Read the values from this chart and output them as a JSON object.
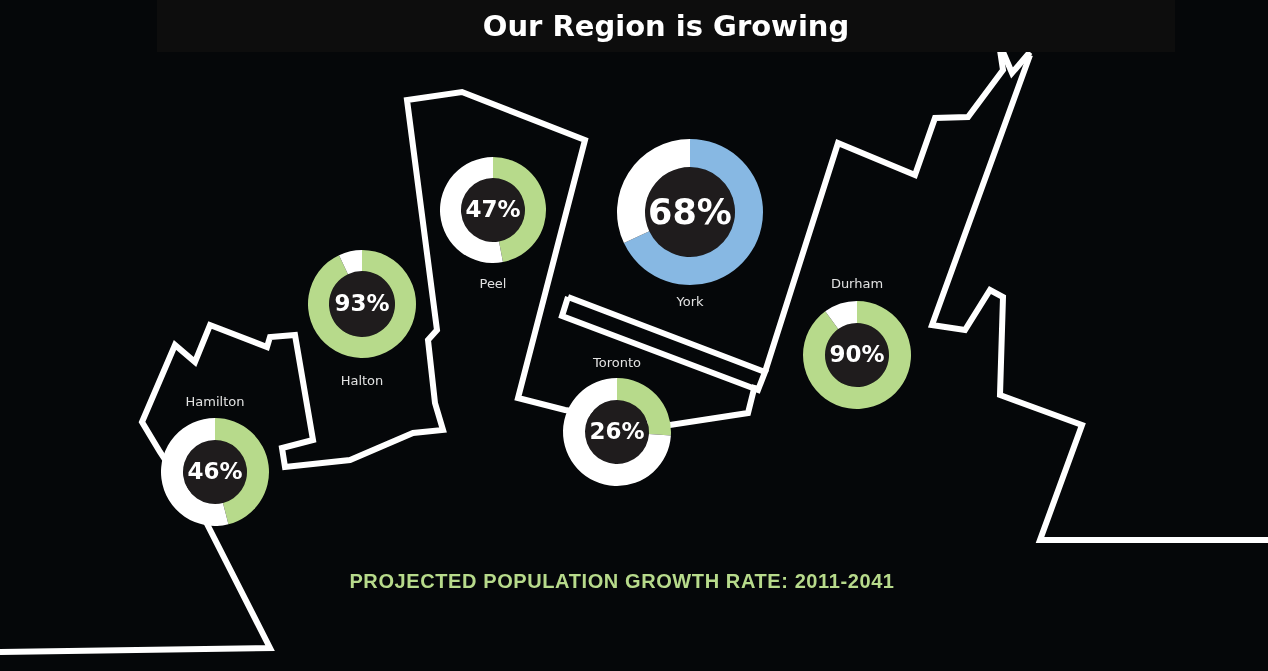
{
  "chart_data": [
    {
      "type": "other",
      "title": "Our Region is Growing",
      "annotations": [
        "PROJECTED POPULATION GROWTH RATE: 2011-2041"
      ]
    },
    {
      "type": "donut",
      "title": "Hamilton",
      "categories": [
        null,
        null
      ],
      "values": [
        46,
        54
      ],
      "colors": [
        "#b7da8b",
        "#ffffff"
      ],
      "value_labels": [
        "46%",
        null
      ]
    },
    {
      "type": "donut",
      "title": "Halton",
      "categories": [
        null,
        null
      ],
      "values": [
        93,
        7
      ],
      "colors": [
        "#b7da8b",
        "#ffffff"
      ],
      "value_labels": [
        "93%",
        null
      ]
    },
    {
      "type": "donut",
      "title": "Peel",
      "categories": [
        null,
        null
      ],
      "values": [
        47,
        53
      ],
      "colors": [
        "#b7da8b",
        "#ffffff"
      ],
      "value_labels": [
        "47%",
        null
      ]
    },
    {
      "type": "donut",
      "title": "Toronto",
      "categories": [
        null,
        null
      ],
      "values": [
        26,
        74
      ],
      "colors": [
        "#b7da8b",
        "#ffffff"
      ],
      "value_labels": [
        "26%",
        null
      ]
    },
    {
      "type": "donut",
      "title": "York",
      "categories": [
        null,
        null
      ],
      "values": [
        68,
        32
      ],
      "colors": [
        "#87b8e3",
        "#ffffff"
      ],
      "value_labels": [
        "68%",
        null
      ]
    },
    {
      "type": "donut",
      "title": "Durham",
      "categories": [
        null,
        null
      ],
      "values": [
        90,
        10
      ],
      "colors": [
        "#b7da8b",
        "#ffffff"
      ],
      "value_labels": [
        "90%",
        null
      ]
    }
  ]
}
